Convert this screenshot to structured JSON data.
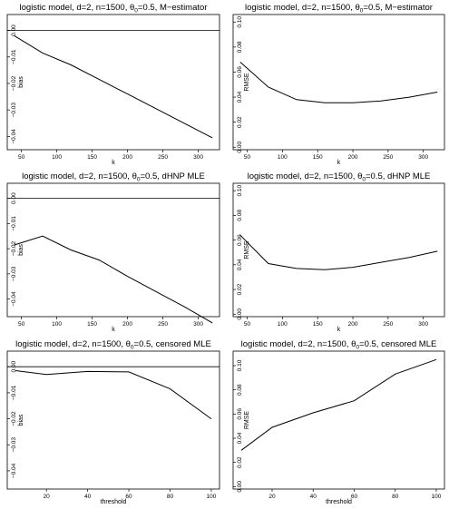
{
  "chart_data": [
    {
      "type": "line",
      "title_parts": [
        "logistic model, d=2, n=1500, θ",
        "0",
        "=0.5, M−estimator"
      ],
      "xlabel": "k",
      "ylabel": "bias",
      "xlim": [
        30,
        330
      ],
      "ylim": [
        -0.045,
        0.006
      ],
      "xticks": [
        50,
        100,
        150,
        200,
        250,
        300
      ],
      "yticks": [
        0.0,
        -0.01,
        -0.02,
        -0.03,
        -0.04
      ],
      "ytick_labels": [
        "0.00",
        "−0.01",
        "−0.02",
        "−0.03",
        "−0.04"
      ],
      "hline": 0,
      "x": [
        40,
        80,
        120,
        160,
        200,
        240,
        280,
        320
      ],
      "values": [
        -0.002,
        -0.0085,
        -0.013,
        -0.0185,
        -0.024,
        -0.0295,
        -0.035,
        -0.0405
      ]
    },
    {
      "type": "line",
      "title_parts": [
        "logistic model, d=2, n=1500, θ",
        "0",
        "=0.5, M−estimator"
      ],
      "xlabel": "k",
      "ylabel": "RMSE",
      "xlim": [
        30,
        330
      ],
      "ylim": [
        -0.002,
        0.106
      ],
      "xticks": [
        50,
        100,
        150,
        200,
        250,
        300
      ],
      "yticks": [
        0.0,
        0.02,
        0.04,
        0.06,
        0.08,
        0.1
      ],
      "ytick_labels": [
        "0.00",
        "0.02",
        "0.04",
        "0.06",
        "0.08",
        "0.10"
      ],
      "x": [
        40,
        80,
        120,
        160,
        200,
        240,
        280,
        320
      ],
      "values": [
        0.068,
        0.048,
        0.038,
        0.0355,
        0.0355,
        0.037,
        0.04,
        0.044
      ]
    },
    {
      "type": "line",
      "title_parts": [
        "logistic model, d=2, n=1500, θ",
        "0",
        "=0.5, dHNP MLE"
      ],
      "xlabel": "k",
      "ylabel": "bias",
      "xlim": [
        30,
        330
      ],
      "ylim": [
        -0.047,
        0.006
      ],
      "xticks": [
        50,
        100,
        150,
        200,
        250,
        300
      ],
      "yticks": [
        0.0,
        -0.01,
        -0.02,
        -0.03,
        -0.04
      ],
      "ytick_labels": [
        "0.00",
        "−0.01",
        "−0.02",
        "−0.03",
        "−0.04"
      ],
      "hline": 0,
      "x": [
        40,
        80,
        120,
        160,
        200,
        240,
        280,
        320
      ],
      "values": [
        -0.0185,
        -0.015,
        -0.0205,
        -0.0245,
        -0.031,
        -0.037,
        -0.043,
        -0.0495
      ]
    },
    {
      "type": "line",
      "title_parts": [
        "logistic model, d=2, n=1500, θ",
        "0",
        "=0.5, dHNP MLE"
      ],
      "xlabel": "k",
      "ylabel": "RMSE",
      "xlim": [
        30,
        330
      ],
      "ylim": [
        -0.002,
        0.106
      ],
      "xticks": [
        50,
        100,
        150,
        200,
        250,
        300
      ],
      "yticks": [
        0.0,
        0.02,
        0.04,
        0.06,
        0.08,
        0.1
      ],
      "ytick_labels": [
        "0.00",
        "0.02",
        "0.04",
        "0.06",
        "0.08",
        "0.10"
      ],
      "x": [
        40,
        80,
        120,
        160,
        200,
        240,
        280,
        320
      ],
      "values": [
        0.064,
        0.041,
        0.037,
        0.036,
        0.038,
        0.042,
        0.046,
        0.051
      ]
    },
    {
      "type": "line",
      "title_parts": [
        "logistic model, d=2, n=1500, θ",
        "0",
        "=0.5, censored MLE"
      ],
      "xlabel": "threshold",
      "ylabel": "bias",
      "xlim": [
        1,
        104
      ],
      "ylim": [
        -0.047,
        0.006
      ],
      "xticks": [
        20,
        40,
        60,
        80,
        100
      ],
      "yticks": [
        0.0,
        -0.01,
        -0.02,
        -0.03,
        -0.04
      ],
      "ytick_labels": [
        "0.00",
        "−0.01",
        "−0.02",
        "−0.03",
        "−0.04"
      ],
      "hline": 0,
      "x": [
        5,
        20,
        40,
        60,
        80,
        100
      ],
      "values": [
        -0.0015,
        -0.003,
        -0.0018,
        -0.002,
        -0.0085,
        -0.02
      ]
    },
    {
      "type": "line",
      "title_parts": [
        "logistic model, d=2, n=1500, θ",
        "0",
        "=0.5, censored MLE"
      ],
      "xlabel": "threshold",
      "ylabel": "RMSE",
      "xlim": [
        1,
        104
      ],
      "ylim": [
        -0.002,
        0.112
      ],
      "xticks": [
        20,
        40,
        60,
        80,
        100
      ],
      "yticks": [
        0.0,
        0.02,
        0.04,
        0.06,
        0.08,
        0.1
      ],
      "ytick_labels": [
        "0.00",
        "0.02",
        "0.04",
        "0.06",
        "0.08",
        "0.10"
      ],
      "x": [
        5,
        20,
        40,
        60,
        80,
        100
      ],
      "values": [
        0.03,
        0.049,
        0.061,
        0.071,
        0.093,
        0.105
      ]
    }
  ]
}
